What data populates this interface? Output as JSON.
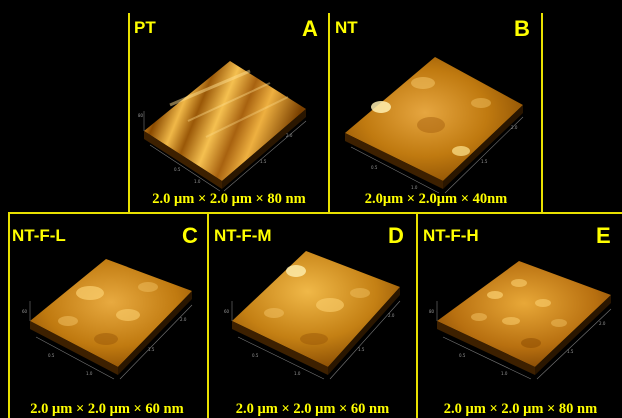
{
  "colors": {
    "border": "#e8e000",
    "label_text": "#ffff00",
    "background": "#000000",
    "surface_dark": "#5a2e00",
    "surface_mid": "#c07a10",
    "surface_light": "#ffd870"
  },
  "panels": [
    {
      "id": "A",
      "name": "PT",
      "letter": "A",
      "caption": "2.0 μm × 2.0 μm × 80 nm"
    },
    {
      "id": "B",
      "name": "NT",
      "letter": "B",
      "caption": "2.0μm × 2.0μm × 40nm"
    },
    {
      "id": "C",
      "name": "NT-F-L",
      "letter": "C",
      "caption": "2.0 μm × 2.0 μm × 60 nm"
    },
    {
      "id": "D",
      "name": "NT-F-M",
      "letter": "D",
      "caption": "2.0 μm × 2.0 μm × 60 nm"
    },
    {
      "id": "E",
      "name": "NT-F-H",
      "letter": "E",
      "caption": "2.0 μm × 2.0 μm × 80 nm"
    }
  ]
}
